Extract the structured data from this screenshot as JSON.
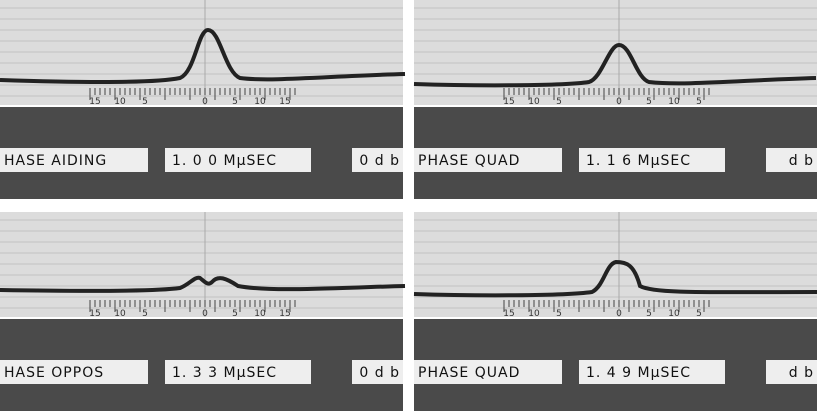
{
  "panels": [
    {
      "scale": [
        "15",
        "10",
        "5",
        "0",
        "5",
        "10",
        "15"
      ],
      "mode": "HASE AIDING",
      "delay": "1. 0 0 MμSEC",
      "level": "0 d b"
    },
    {
      "scale": [
        "15",
        "10",
        "5",
        "0",
        "5",
        "10",
        "5"
      ],
      "mode": "PHASE QUAD",
      "delay": "1. 1 6 MμSEC",
      "level": "d b"
    },
    {
      "scale": [
        "15",
        "10",
        "5",
        "0",
        "5",
        "10",
        "15"
      ],
      "mode": "HASE OPPOS",
      "delay": "1. 3 3 MμSEC",
      "level": "0 d b"
    },
    {
      "scale": [
        "15",
        "10",
        "5",
        "0",
        "5",
        "10",
        "5"
      ],
      "mode": "PHASE QUAD",
      "delay": "1. 4 9 MμSEC",
      "level": "d b"
    }
  ]
}
